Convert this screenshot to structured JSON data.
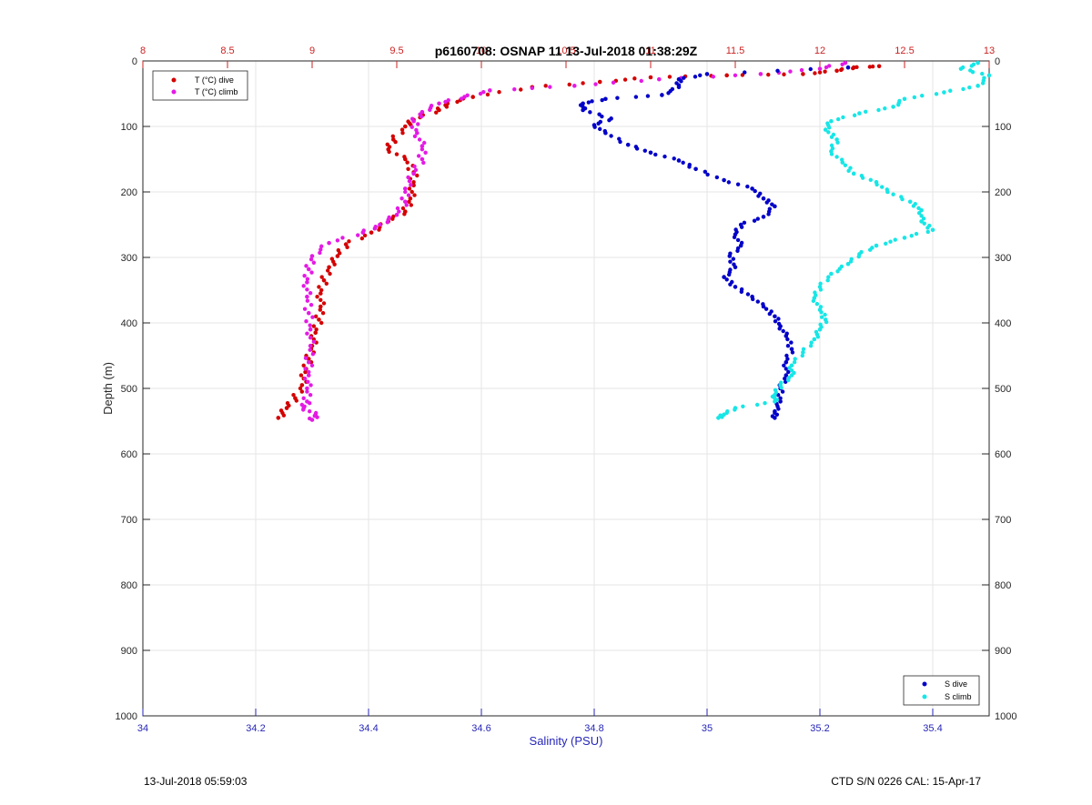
{
  "chart_data": {
    "type": "scatter",
    "title": "p6160708: OSNAP 11 13-Jul-2018 01:38:29Z",
    "ylabel": "Depth (m)",
    "xlabel_bottom": "Salinity (PSU)",
    "y_axis": {
      "range": [
        0,
        1000
      ],
      "ticks": [
        "0",
        "100",
        "200",
        "300",
        "400",
        "500",
        "600",
        "700",
        "800",
        "900",
        "1000"
      ],
      "reversed": true
    },
    "x_bottom_axis": {
      "range": [
        34,
        35.5
      ],
      "ticks": [
        "34",
        "34.2",
        "34.4",
        "34.6",
        "34.8",
        "35",
        "35.2",
        "35.4"
      ],
      "color": "#2626b8"
    },
    "x_top_axis": {
      "range": [
        8,
        13
      ],
      "ticks": [
        "8",
        "8.5",
        "9",
        "9.5",
        "10",
        "10.5",
        "11",
        "11.5",
        "12",
        "12.5",
        "13"
      ],
      "color": "#cc2222"
    },
    "grid": true,
    "series": [
      {
        "name": "T (°C) dive",
        "axis": "top",
        "color": "#d40000",
        "points": [
          [
            12.35,
            8
          ],
          [
            12.2,
            10
          ],
          [
            12.1,
            15
          ],
          [
            11.9,
            20
          ],
          [
            11.45,
            22
          ],
          [
            11.0,
            25
          ],
          [
            10.7,
            32
          ],
          [
            10.3,
            40
          ],
          [
            9.95,
            55
          ],
          [
            9.8,
            65
          ],
          [
            9.75,
            75
          ],
          [
            9.6,
            90
          ],
          [
            9.55,
            100
          ],
          [
            9.48,
            120
          ],
          [
            9.45,
            135
          ],
          [
            9.55,
            150
          ],
          [
            9.6,
            170
          ],
          [
            9.6,
            190
          ],
          [
            9.58,
            210
          ],
          [
            9.55,
            230
          ],
          [
            9.45,
            245
          ],
          [
            9.35,
            262
          ],
          [
            9.2,
            280
          ],
          [
            9.15,
            298
          ],
          [
            9.1,
            315
          ],
          [
            9.07,
            335
          ],
          [
            9.05,
            355
          ],
          [
            9.05,
            375
          ],
          [
            9.04,
            395
          ],
          [
            9.02,
            415
          ],
          [
            9.0,
            435
          ],
          [
            8.98,
            455
          ],
          [
            8.96,
            475
          ],
          [
            8.94,
            495
          ],
          [
            8.9,
            515
          ],
          [
            8.85,
            530
          ],
          [
            8.8,
            545
          ]
        ]
      },
      {
        "name": "T (°C) climb",
        "axis": "top",
        "color": "#e41ae4",
        "points": [
          [
            12.15,
            3
          ],
          [
            12.0,
            12
          ],
          [
            11.65,
            20
          ],
          [
            11.05,
            28
          ],
          [
            10.55,
            38
          ],
          [
            10.05,
            45
          ],
          [
            9.9,
            55
          ],
          [
            9.75,
            65
          ],
          [
            9.65,
            78
          ],
          [
            9.6,
            92
          ],
          [
            9.62,
            110
          ],
          [
            9.65,
            130
          ],
          [
            9.65,
            150
          ],
          [
            9.6,
            172
          ],
          [
            9.55,
            195
          ],
          [
            9.55,
            215
          ],
          [
            9.5,
            235
          ],
          [
            9.4,
            250
          ],
          [
            9.3,
            262
          ],
          [
            9.1,
            278
          ],
          [
            9.0,
            298
          ],
          [
            8.98,
            318
          ],
          [
            8.97,
            338
          ],
          [
            8.97,
            360
          ],
          [
            8.98,
            385
          ],
          [
            8.99,
            410
          ],
          [
            8.99,
            435
          ],
          [
            8.98,
            460
          ],
          [
            8.98,
            480
          ],
          [
            8.97,
            500
          ],
          [
            8.97,
            520
          ],
          [
            8.95,
            530
          ],
          [
            9.02,
            540
          ],
          [
            9.0,
            548
          ]
        ]
      },
      {
        "name": "S dive",
        "axis": "bottom",
        "color": "#0000c8",
        "points": [
          [
            35.25,
            10
          ],
          [
            35.0,
            20
          ],
          [
            34.95,
            28
          ],
          [
            34.95,
            40
          ],
          [
            34.92,
            52
          ],
          [
            34.82,
            58
          ],
          [
            34.78,
            65
          ],
          [
            34.78,
            75
          ],
          [
            34.83,
            88
          ],
          [
            34.8,
            98
          ],
          [
            34.82,
            110
          ],
          [
            34.86,
            128
          ],
          [
            34.9,
            140
          ],
          [
            34.95,
            152
          ],
          [
            34.98,
            165
          ],
          [
            35.03,
            182
          ],
          [
            35.08,
            195
          ],
          [
            35.1,
            210
          ],
          [
            35.12,
            222
          ],
          [
            35.1,
            238
          ],
          [
            35.06,
            250
          ],
          [
            35.05,
            265
          ],
          [
            35.06,
            282
          ],
          [
            35.04,
            298
          ],
          [
            35.05,
            315
          ],
          [
            35.03,
            330
          ],
          [
            35.05,
            345
          ],
          [
            35.08,
            360
          ],
          [
            35.1,
            375
          ],
          [
            35.12,
            390
          ],
          [
            35.13,
            405
          ],
          [
            35.14,
            420
          ],
          [
            35.15,
            440
          ],
          [
            35.14,
            460
          ],
          [
            35.14,
            480
          ],
          [
            35.13,
            500
          ],
          [
            35.13,
            520
          ],
          [
            35.12,
            535
          ],
          [
            35.12,
            545
          ]
        ]
      },
      {
        "name": "S climb",
        "axis": "bottom",
        "color": "#17e6e6",
        "points": [
          [
            35.48,
            3
          ],
          [
            35.45,
            12
          ],
          [
            35.5,
            22
          ],
          [
            35.48,
            38
          ],
          [
            35.42,
            48
          ],
          [
            35.35,
            58
          ],
          [
            35.33,
            70
          ],
          [
            35.27,
            80
          ],
          [
            35.22,
            92
          ],
          [
            35.21,
            105
          ],
          [
            35.23,
            120
          ],
          [
            35.22,
            138
          ],
          [
            35.24,
            155
          ],
          [
            35.26,
            172
          ],
          [
            35.3,
            185
          ],
          [
            35.32,
            200
          ],
          [
            35.36,
            215
          ],
          [
            35.38,
            228
          ],
          [
            35.38,
            245
          ],
          [
            35.4,
            258
          ],
          [
            35.35,
            270
          ],
          [
            35.3,
            282
          ],
          [
            35.27,
            295
          ],
          [
            35.25,
            310
          ],
          [
            35.22,
            325
          ],
          [
            35.2,
            345
          ],
          [
            35.19,
            362
          ],
          [
            35.2,
            380
          ],
          [
            35.21,
            395
          ],
          [
            35.2,
            410
          ],
          [
            35.19,
            425
          ],
          [
            35.17,
            445
          ],
          [
            35.15,
            465
          ],
          [
            35.15,
            480
          ],
          [
            35.13,
            495
          ],
          [
            35.12,
            510
          ],
          [
            35.12,
            520
          ],
          [
            35.05,
            530
          ],
          [
            35.03,
            540
          ],
          [
            35.02,
            545
          ]
        ]
      }
    ],
    "legends": {
      "top_left": [
        "T (°C) dive",
        "T (°C) climb"
      ],
      "bottom_right": [
        "S dive",
        "S climb"
      ]
    }
  },
  "footer": {
    "timestamp": "13-Jul-2018 05:59:03",
    "ctd_info": "CTD S/N 0226  CAL: 15-Apr-17"
  }
}
